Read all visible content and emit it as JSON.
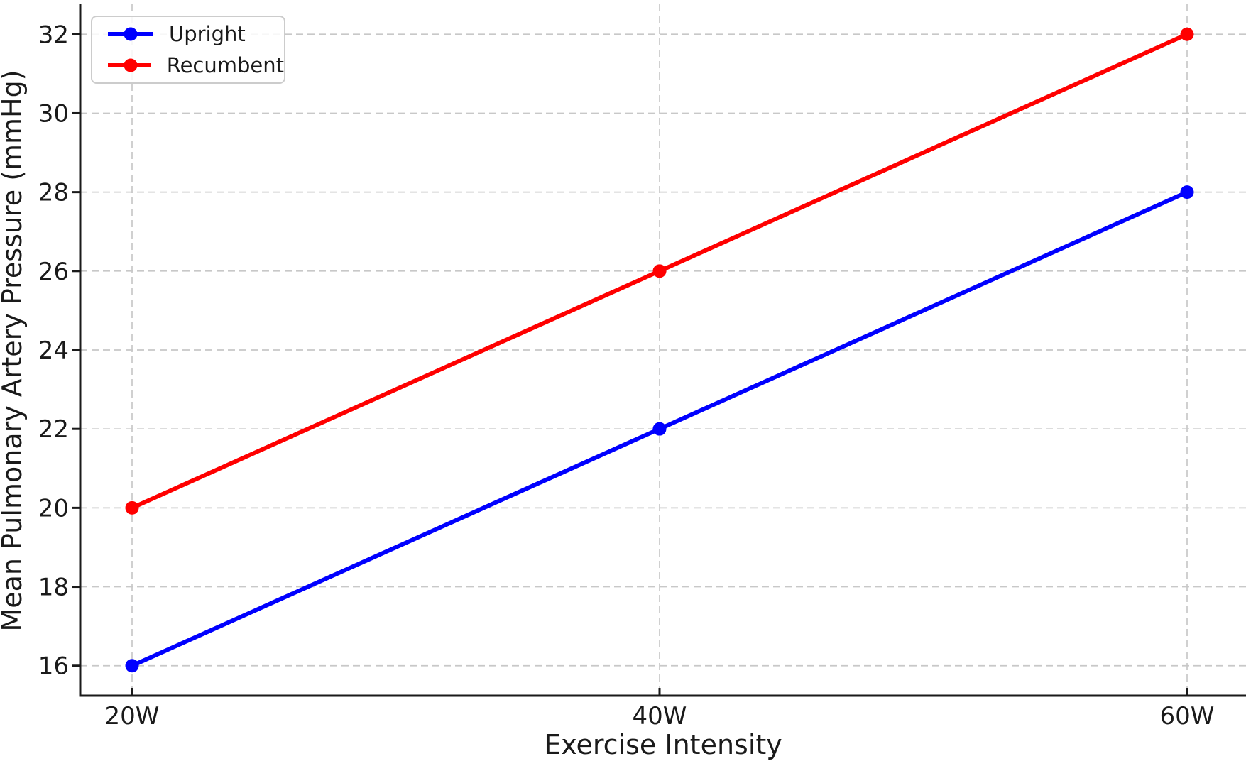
{
  "chart_data": {
    "type": "line",
    "title": "",
    "xlabel": "Exercise Intensity",
    "ylabel": "Mean Pulmonary Artery Pressure (mmHg)",
    "categories": [
      "20W",
      "40W",
      "60W"
    ],
    "series": [
      {
        "name": "Upright",
        "color": "#0000ff",
        "values": [
          16,
          22,
          28
        ]
      },
      {
        "name": "Recumbent",
        "color": "#ff0000",
        "values": [
          20,
          26,
          32
        ]
      }
    ],
    "yticks": [
      16,
      18,
      20,
      22,
      24,
      26,
      28,
      30,
      32
    ],
    "ylim": [
      15.24,
      32.76
    ],
    "grid": true,
    "grid_style": "dashed",
    "legend_position": "upper-left",
    "colors": {
      "axis": "#1a1a1a",
      "grid": "#c8c8c8",
      "text": "#1a1a1a",
      "legend_border": "#cccccc"
    }
  }
}
